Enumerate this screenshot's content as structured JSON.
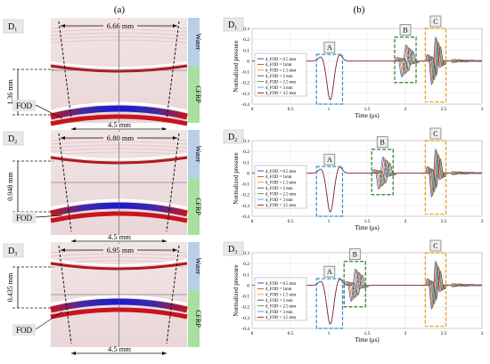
{
  "figure": {
    "label_a": "(a)",
    "label_b": "(b)",
    "colors": {
      "background": "#f4e4e4",
      "red_band": "#c8141e",
      "blue_band": "#1e1ec8",
      "water": "#b8cfe8",
      "cfrp": "#a9dfa0",
      "box_a": "#2a8fd6",
      "box_b": "#2a7a2a",
      "box_c": "#e39a1a"
    }
  },
  "panels_a": [
    {
      "id": "D",
      "sub": "1",
      "width_label": "6.66 mm",
      "depth_label": "1.36 mm",
      "base_label": "4.5 mm",
      "water": "Water",
      "cfrp": "CFRP",
      "fod": "FOD"
    },
    {
      "id": "D",
      "sub": "2",
      "width_label": "6.80 mm",
      "depth_label": "0.948 mm",
      "base_label": "4.5 mm",
      "water": "Water",
      "cfrp": "CFRP",
      "fod": "FOD"
    },
    {
      "id": "D",
      "sub": "3",
      "width_label": "6.95 mm",
      "depth_label": "0.435 mm",
      "base_label": "4.5 mm",
      "water": "Water",
      "cfrp": "CFRP",
      "fod": "FOD"
    }
  ],
  "panels_b": [
    {
      "id": "D",
      "sub": "1",
      "ylabel": "Normalized pressure",
      "xlabel": "Time (μs)",
      "yticks": [
        "0.3",
        "0.2",
        "0.1",
        "0",
        "-0.1",
        "-0.2",
        "-0.3",
        "-0.4"
      ],
      "xticks": [
        "0",
        "0.5",
        "1",
        "1.5",
        "2",
        "2.5",
        "3"
      ],
      "boxes": {
        "A": "A",
        "B": "B",
        "C": "C"
      },
      "legend": [
        "d_FOD = 0.5 mm",
        "d_FOD = 1mm",
        "d_FOD = 1.5 mm",
        "d_FOD = 2 mm",
        "d_FOD = 2.5 mm",
        "d_FOD = 3 mm",
        "d_FOD = 3.5 mm"
      ]
    },
    {
      "id": "D",
      "sub": "2",
      "ylabel": "Normalized pressure",
      "xlabel": "Time (μs)",
      "yticks": [
        "0.3",
        "0.2",
        "0.1",
        "0",
        "-0.1",
        "-0.2",
        "-0.3",
        "-0.4"
      ],
      "xticks": [
        "0",
        "0.5",
        "1",
        "1.5",
        "2",
        "2.5",
        "3"
      ],
      "boxes": {
        "A": "A",
        "B": "B",
        "C": "C"
      },
      "legend": [
        "d_FOD = 0.5 mm",
        "d_FOD = 1mm",
        "d_FOD = 1.5 mm",
        "d_FOD = 2 mm",
        "d_FOD = 2.5 mm",
        "d_FOD = 3 mm",
        "d_FOD = 3.5 mm"
      ]
    },
    {
      "id": "D",
      "sub": "3",
      "ylabel": "Normalized pressure",
      "xlabel": "Time (μs)",
      "yticks": [
        "0.3",
        "0.2",
        "0.1",
        "0",
        "-0.1",
        "-0.2",
        "-0.3",
        "-0.4"
      ],
      "xticks": [
        "0",
        "0.5",
        "1",
        "1.5",
        "2",
        "2.5",
        "3"
      ],
      "boxes": {
        "A": "A",
        "B": "B",
        "C": "C"
      },
      "legend": [
        "d_FOD = 0.5 mm",
        "d_FOD = 1mm",
        "d_FOD = 1.5 mm",
        "d_FOD = 2 mm",
        "d_FOD = 2.5 mm",
        "d_FOD = 3 mm",
        "d_FOD = 3.5 mm"
      ]
    }
  ],
  "chart_data": [
    {
      "type": "line",
      "xlabel": "Time (μs)",
      "ylabel": "Normalized pressure",
      "xlim": [
        0,
        3
      ],
      "ylim": [
        -0.4,
        0.3
      ],
      "series": [
        {
          "name": "d_FOD = 0.5 mm",
          "color": "#1f5fd8"
        },
        {
          "name": "d_FOD = 1mm",
          "color": "#d8462a"
        },
        {
          "name": "d_FOD = 1.5 mm",
          "color": "#e0b21a"
        },
        {
          "name": "d_FOD = 2 mm",
          "color": "#7a3aa8"
        },
        {
          "name": "d_FOD = 2.5 mm",
          "color": "#58a83a"
        },
        {
          "name": "d_FOD = 3 mm",
          "color": "#40b8d8"
        },
        {
          "name": "d_FOD = 3.5 mm",
          "color": "#a01e2a"
        }
      ]
    },
    {
      "type": "line",
      "xlabel": "Time (μs)",
      "ylabel": "Normalized pressure",
      "xlim": [
        0,
        3
      ],
      "ylim": [
        -0.4,
        0.3
      ]
    },
    {
      "type": "line",
      "xlabel": "Time (μs)",
      "ylabel": "Normalized pressure",
      "xlim": [
        0,
        3
      ],
      "ylim": [
        -0.4,
        0.3
      ]
    }
  ]
}
